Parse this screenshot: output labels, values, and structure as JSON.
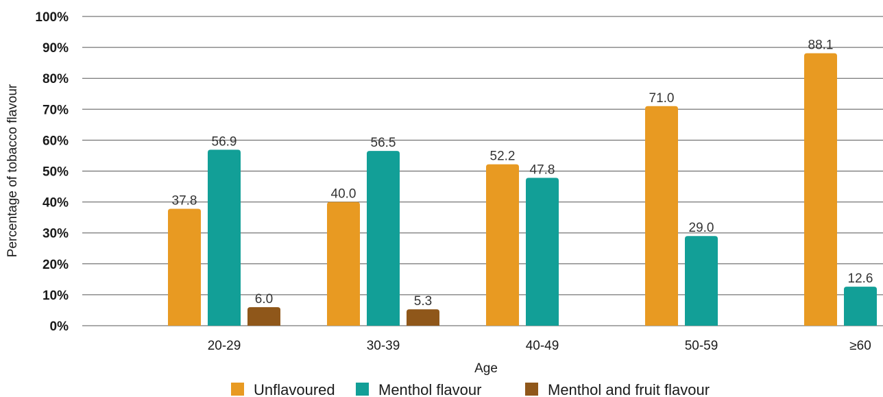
{
  "chart_data": {
    "type": "bar",
    "categories": [
      "20-29",
      "30-39",
      "40-49",
      "50-59",
      "≥60"
    ],
    "series": [
      {
        "name": "Unflavoured",
        "values": [
          37.8,
          40.0,
          52.2,
          71.0,
          88.1
        ],
        "color": "#E89A22"
      },
      {
        "name": "Menthol flavour",
        "values": [
          56.9,
          56.5,
          47.8,
          29.0,
          12.6
        ],
        "color": "#129F97"
      },
      {
        "name": "Menthol and fruit flavour",
        "values": [
          6.0,
          5.3,
          null,
          null,
          null
        ],
        "color": "#8F571A"
      }
    ],
    "data_labels": [
      [
        "37.8",
        "40.0",
        "52.2",
        "71.0",
        "88.1"
      ],
      [
        "56.9",
        "56.5",
        "47.8",
        "29.0",
        "12.6"
      ],
      [
        "6.0",
        "5.3",
        null,
        null,
        null
      ]
    ],
    "xlabel": "Age",
    "ylabel": "Percentage of tobacco flavour",
    "ylim": [
      0,
      100
    ],
    "yticks": [
      "0%",
      "10%",
      "20%",
      "30%",
      "40%",
      "50%",
      "60%",
      "70%",
      "80%",
      "90%",
      "100%"
    ],
    "grid": true,
    "legend_position": "bottom"
  }
}
